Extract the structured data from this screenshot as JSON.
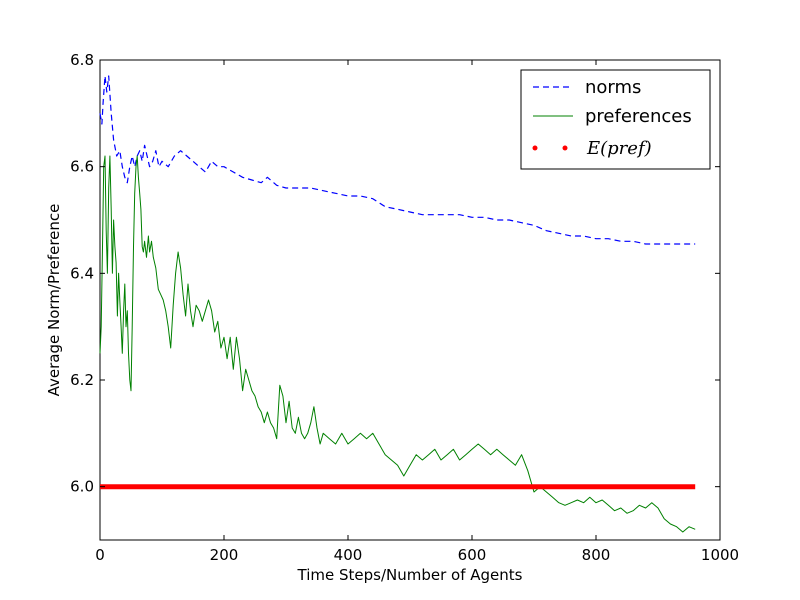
{
  "chart_data": {
    "type": "line",
    "xlabel": "Time Steps/Number of Agents",
    "ylabel": "Average Norm/Preference",
    "xlim": [
      0,
      1000
    ],
    "ylim": [
      5.9,
      6.8
    ],
    "xticks": [
      0,
      200,
      400,
      600,
      800,
      1000
    ],
    "xtick_labels": [
      "0",
      "200",
      "400",
      "600",
      "800",
      "1000"
    ],
    "yticks": [
      6.0,
      6.2,
      6.4,
      6.6,
      6.8
    ],
    "ytick_labels": [
      "6.0",
      "6.2",
      "6.4",
      "6.6",
      "6.8"
    ],
    "grid": false,
    "legend_position": "top-right",
    "series": [
      {
        "name": "norms",
        "style": "dashed",
        "color": "#0000ff",
        "points": [
          [
            0,
            6.7
          ],
          [
            3,
            6.68
          ],
          [
            5,
            6.72
          ],
          [
            8,
            6.77
          ],
          [
            11,
            6.74
          ],
          [
            14,
            6.77
          ],
          [
            18,
            6.7
          ],
          [
            22,
            6.65
          ],
          [
            27,
            6.62
          ],
          [
            32,
            6.63
          ],
          [
            36,
            6.6
          ],
          [
            40,
            6.58
          ],
          [
            44,
            6.57
          ],
          [
            48,
            6.6
          ],
          [
            52,
            6.62
          ],
          [
            56,
            6.6
          ],
          [
            60,
            6.62
          ],
          [
            64,
            6.63
          ],
          [
            68,
            6.61
          ],
          [
            72,
            6.64
          ],
          [
            76,
            6.62
          ],
          [
            80,
            6.6
          ],
          [
            85,
            6.61
          ],
          [
            90,
            6.63
          ],
          [
            95,
            6.6
          ],
          [
            100,
            6.61
          ],
          [
            110,
            6.6
          ],
          [
            120,
            6.62
          ],
          [
            130,
            6.63
          ],
          [
            140,
            6.62
          ],
          [
            150,
            6.61
          ],
          [
            160,
            6.6
          ],
          [
            170,
            6.59
          ],
          [
            180,
            6.61
          ],
          [
            190,
            6.6
          ],
          [
            200,
            6.6
          ],
          [
            215,
            6.59
          ],
          [
            230,
            6.58
          ],
          [
            245,
            6.575
          ],
          [
            260,
            6.57
          ],
          [
            270,
            6.58
          ],
          [
            285,
            6.565
          ],
          [
            300,
            6.56
          ],
          [
            320,
            6.56
          ],
          [
            340,
            6.56
          ],
          [
            360,
            6.555
          ],
          [
            380,
            6.55
          ],
          [
            400,
            6.545
          ],
          [
            420,
            6.545
          ],
          [
            440,
            6.54
          ],
          [
            460,
            6.525
          ],
          [
            480,
            6.52
          ],
          [
            500,
            6.515
          ],
          [
            520,
            6.51
          ],
          [
            540,
            6.51
          ],
          [
            560,
            6.51
          ],
          [
            580,
            6.51
          ],
          [
            600,
            6.505
          ],
          [
            620,
            6.505
          ],
          [
            640,
            6.5
          ],
          [
            660,
            6.5
          ],
          [
            680,
            6.495
          ],
          [
            700,
            6.49
          ],
          [
            720,
            6.48
          ],
          [
            740,
            6.475
          ],
          [
            760,
            6.47
          ],
          [
            780,
            6.47
          ],
          [
            800,
            6.465
          ],
          [
            820,
            6.465
          ],
          [
            840,
            6.46
          ],
          [
            860,
            6.46
          ],
          [
            880,
            6.455
          ],
          [
            900,
            6.455
          ],
          [
            920,
            6.455
          ],
          [
            940,
            6.455
          ],
          [
            960,
            6.455
          ]
        ]
      },
      {
        "name": "preferences",
        "style": "solid",
        "color": "#008000",
        "points": [
          [
            0,
            6.25
          ],
          [
            2,
            6.3
          ],
          [
            4,
            6.45
          ],
          [
            6,
            6.6
          ],
          [
            8,
            6.62
          ],
          [
            10,
            6.48
          ],
          [
            12,
            6.4
          ],
          [
            14,
            6.56
          ],
          [
            16,
            6.62
          ],
          [
            18,
            6.52
          ],
          [
            20,
            6.4
          ],
          [
            22,
            6.5
          ],
          [
            24,
            6.45
          ],
          [
            26,
            6.42
          ],
          [
            28,
            6.32
          ],
          [
            30,
            6.4
          ],
          [
            32,
            6.35
          ],
          [
            34,
            6.3
          ],
          [
            36,
            6.25
          ],
          [
            38,
            6.33
          ],
          [
            40,
            6.38
          ],
          [
            42,
            6.3
          ],
          [
            44,
            6.33
          ],
          [
            46,
            6.25
          ],
          [
            48,
            6.2
          ],
          [
            50,
            6.18
          ],
          [
            52,
            6.3
          ],
          [
            54,
            6.45
          ],
          [
            56,
            6.55
          ],
          [
            58,
            6.6
          ],
          [
            60,
            6.62
          ],
          [
            62,
            6.58
          ],
          [
            64,
            6.55
          ],
          [
            66,
            6.52
          ],
          [
            68,
            6.45
          ],
          [
            70,
            6.44
          ],
          [
            72,
            6.46
          ],
          [
            75,
            6.43
          ],
          [
            78,
            6.47
          ],
          [
            80,
            6.44
          ],
          [
            83,
            6.46
          ],
          [
            86,
            6.43
          ],
          [
            90,
            6.41
          ],
          [
            94,
            6.37
          ],
          [
            98,
            6.36
          ],
          [
            102,
            6.35
          ],
          [
            106,
            6.33
          ],
          [
            110,
            6.3
          ],
          [
            114,
            6.26
          ],
          [
            118,
            6.34
          ],
          [
            122,
            6.4
          ],
          [
            126,
            6.44
          ],
          [
            130,
            6.41
          ],
          [
            134,
            6.36
          ],
          [
            138,
            6.32
          ],
          [
            142,
            6.38
          ],
          [
            146,
            6.33
          ],
          [
            150,
            6.3
          ],
          [
            155,
            6.34
          ],
          [
            160,
            6.33
          ],
          [
            165,
            6.31
          ],
          [
            170,
            6.33
          ],
          [
            175,
            6.35
          ],
          [
            180,
            6.33
          ],
          [
            185,
            6.29
          ],
          [
            190,
            6.31
          ],
          [
            195,
            6.26
          ],
          [
            200,
            6.28
          ],
          [
            205,
            6.24
          ],
          [
            210,
            6.28
          ],
          [
            215,
            6.22
          ],
          [
            220,
            6.28
          ],
          [
            225,
            6.24
          ],
          [
            230,
            6.18
          ],
          [
            235,
            6.22
          ],
          [
            240,
            6.2
          ],
          [
            245,
            6.18
          ],
          [
            250,
            6.17
          ],
          [
            255,
            6.15
          ],
          [
            260,
            6.14
          ],
          [
            265,
            6.12
          ],
          [
            270,
            6.14
          ],
          [
            275,
            6.12
          ],
          [
            280,
            6.11
          ],
          [
            285,
            6.09
          ],
          [
            290,
            6.19
          ],
          [
            295,
            6.17
          ],
          [
            300,
            6.12
          ],
          [
            305,
            6.16
          ],
          [
            310,
            6.11
          ],
          [
            315,
            6.1
          ],
          [
            320,
            6.13
          ],
          [
            325,
            6.1
          ],
          [
            330,
            6.09
          ],
          [
            335,
            6.1
          ],
          [
            340,
            6.12
          ],
          [
            345,
            6.15
          ],
          [
            350,
            6.11
          ],
          [
            355,
            6.08
          ],
          [
            360,
            6.1
          ],
          [
            370,
            6.09
          ],
          [
            380,
            6.08
          ],
          [
            390,
            6.1
          ],
          [
            400,
            6.08
          ],
          [
            410,
            6.09
          ],
          [
            420,
            6.1
          ],
          [
            430,
            6.09
          ],
          [
            440,
            6.1
          ],
          [
            450,
            6.08
          ],
          [
            460,
            6.06
          ],
          [
            470,
            6.05
          ],
          [
            480,
            6.04
          ],
          [
            490,
            6.02
          ],
          [
            500,
            6.04
          ],
          [
            510,
            6.06
          ],
          [
            520,
            6.05
          ],
          [
            530,
            6.06
          ],
          [
            540,
            6.07
          ],
          [
            550,
            6.05
          ],
          [
            560,
            6.06
          ],
          [
            570,
            6.07
          ],
          [
            580,
            6.05
          ],
          [
            590,
            6.06
          ],
          [
            600,
            6.07
          ],
          [
            610,
            6.08
          ],
          [
            620,
            6.07
          ],
          [
            630,
            6.06
          ],
          [
            640,
            6.07
          ],
          [
            650,
            6.06
          ],
          [
            660,
            6.05
          ],
          [
            670,
            6.04
          ],
          [
            680,
            6.06
          ],
          [
            690,
            6.03
          ],
          [
            700,
            5.99
          ],
          [
            710,
            6.0
          ],
          [
            720,
            5.99
          ],
          [
            730,
            5.98
          ],
          [
            740,
            5.97
          ],
          [
            750,
            5.965
          ],
          [
            760,
            5.97
          ],
          [
            770,
            5.975
          ],
          [
            780,
            5.97
          ],
          [
            790,
            5.98
          ],
          [
            800,
            5.97
          ],
          [
            810,
            5.975
          ],
          [
            820,
            5.965
          ],
          [
            830,
            5.955
          ],
          [
            840,
            5.96
          ],
          [
            850,
            5.95
          ],
          [
            860,
            5.955
          ],
          [
            870,
            5.965
          ],
          [
            880,
            5.96
          ],
          [
            890,
            5.97
          ],
          [
            900,
            5.96
          ],
          [
            910,
            5.94
          ],
          [
            920,
            5.93
          ],
          [
            930,
            5.925
          ],
          [
            940,
            5.915
          ],
          [
            950,
            5.925
          ],
          [
            960,
            5.92
          ]
        ]
      },
      {
        "name": "E(pref)",
        "style": "dotted-thick",
        "color": "#ff0000",
        "points": [
          [
            0,
            6.0
          ],
          [
            960,
            6.0
          ]
        ]
      }
    ]
  }
}
